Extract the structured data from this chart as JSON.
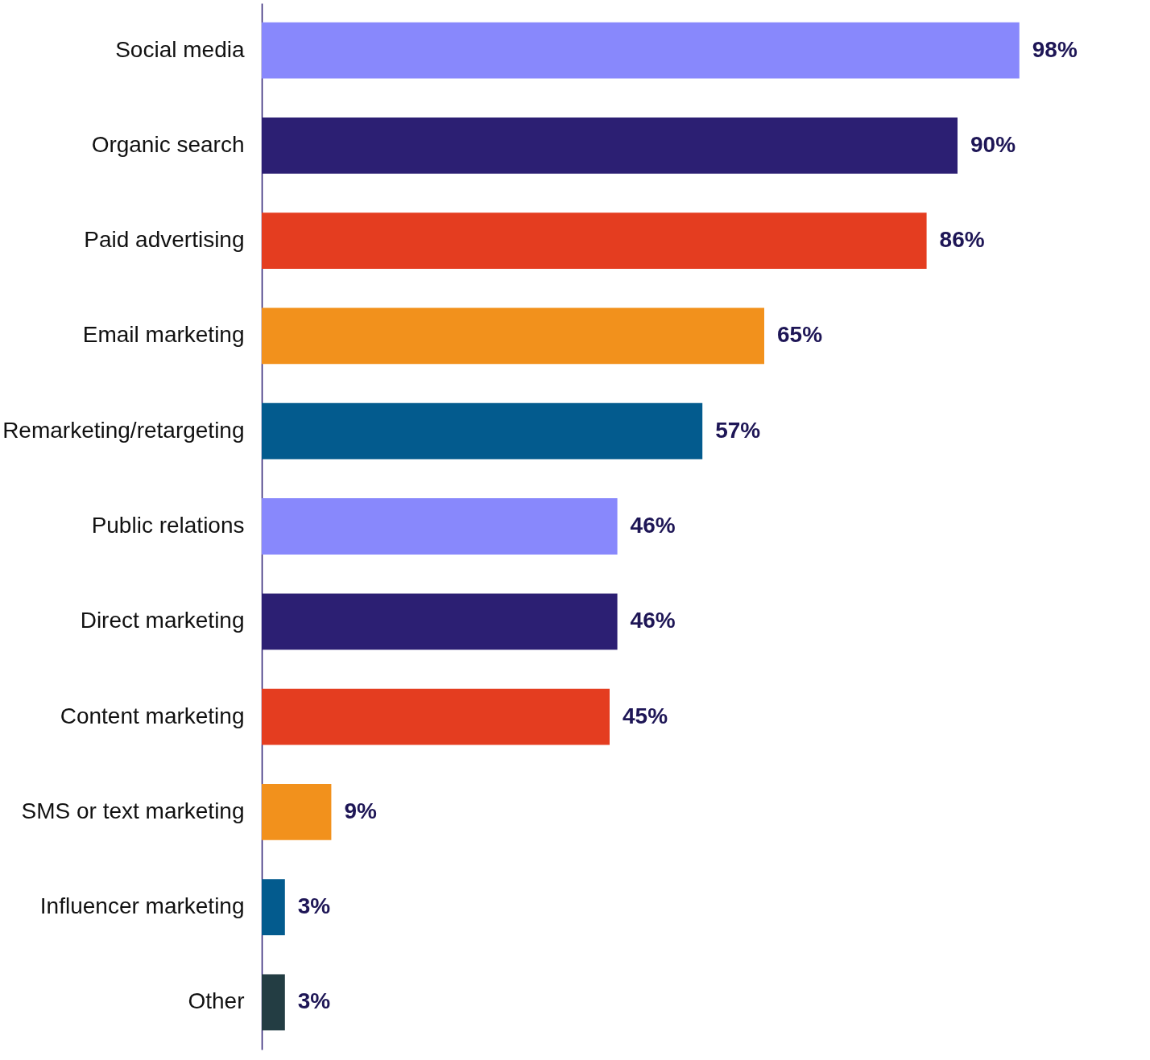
{
  "chart_data": {
    "type": "bar",
    "orientation": "horizontal",
    "categories": [
      "Social media",
      "Organic search",
      "Paid advertising",
      "Email marketing",
      "Remarketing/retargeting",
      "Public relations",
      "Direct marketing",
      "Content marketing",
      "SMS or text marketing",
      "Influencer marketing",
      "Other"
    ],
    "values": [
      98,
      90,
      86,
      65,
      57,
      46,
      46,
      45,
      9,
      3,
      3
    ],
    "colors": [
      "#8888fc",
      "#2c1f73",
      "#e43d20",
      "#f2911c",
      "#035b8e",
      "#8888fc",
      "#2c1f73",
      "#e43d20",
      "#f2911c",
      "#035b8e",
      "#233d43"
    ],
    "value_labels": [
      "98%",
      "90%",
      "86%",
      "65%",
      "57%",
      "46%",
      "46%",
      "45%",
      "9%",
      "3%",
      "3%"
    ],
    "tick_labels": "y"
  }
}
